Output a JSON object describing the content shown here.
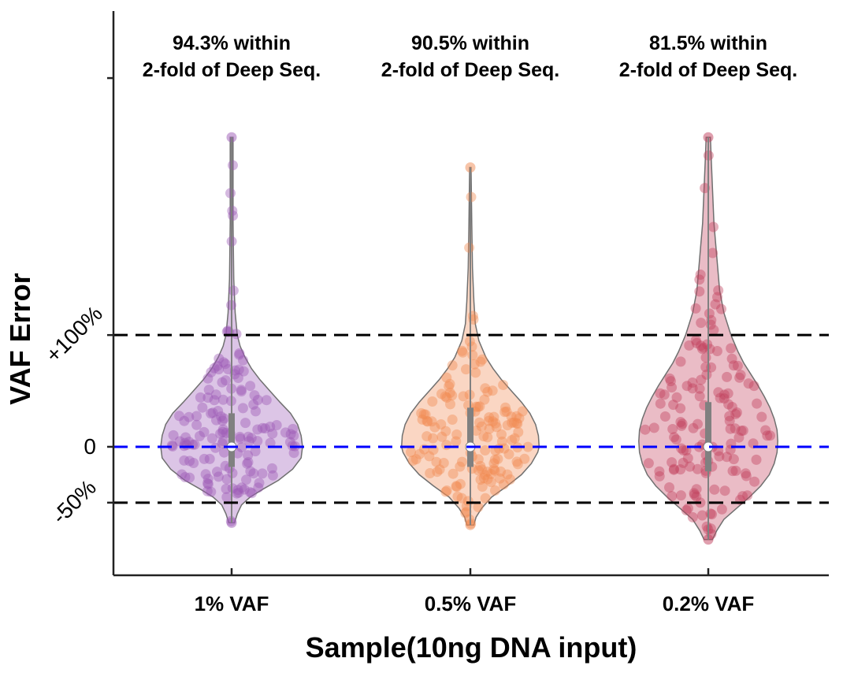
{
  "chart_data": {
    "type": "violin",
    "xlabel": "Sample(10ng DNA input)",
    "ylabel": "VAF Error",
    "categories": [
      "1% VAF",
      "0.5% VAF",
      "0.2% VAF"
    ],
    "y_ticks": [
      {
        "value": -50,
        "label": "-50%"
      },
      {
        "value": 0,
        "label": "0"
      },
      {
        "value": 100,
        "label": "+100%"
      },
      {
        "value": 330,
        "label": ""
      }
    ],
    "ylim": [
      -115,
      390
    ],
    "reference_lines": [
      {
        "value": 100,
        "color": "#000000",
        "style": "dashed"
      },
      {
        "value": 0,
        "color": "#0000ff",
        "style": "dashed"
      },
      {
        "value": -50,
        "color": "#000000",
        "style": "dashed"
      }
    ],
    "annotations": [
      {
        "line1": "94.3% within",
        "line2": "2-fold of Deep Seq."
      },
      {
        "line1": "90.5% within",
        "line2": "2-fold of Deep Seq."
      },
      {
        "line1": "81.5% within",
        "line2": "2-fold of Deep Seq."
      }
    ],
    "series": [
      {
        "category": "1% VAF",
        "color": "#9b59b6",
        "min": -68,
        "q1": -18,
        "median": 0,
        "q3": 30,
        "max": 277,
        "density": [
          [
            -68,
            0.04
          ],
          [
            -60,
            0.08
          ],
          [
            -52,
            0.14
          ],
          [
            -45,
            0.26
          ],
          [
            -38,
            0.44
          ],
          [
            -30,
            0.66
          ],
          [
            -20,
            0.86
          ],
          [
            -10,
            0.98
          ],
          [
            0,
            1.0
          ],
          [
            10,
            0.98
          ],
          [
            20,
            0.93
          ],
          [
            30,
            0.83
          ],
          [
            40,
            0.68
          ],
          [
            50,
            0.54
          ],
          [
            60,
            0.4
          ],
          [
            70,
            0.28
          ],
          [
            80,
            0.19
          ],
          [
            90,
            0.12
          ],
          [
            100,
            0.08
          ],
          [
            120,
            0.05
          ],
          [
            150,
            0.03
          ],
          [
            200,
            0.02
          ],
          [
            277,
            0.02
          ]
        ]
      },
      {
        "category": "0.5% VAF",
        "color": "#f08a52",
        "min": -70,
        "q1": -18,
        "median": 0,
        "q3": 35,
        "max": 250,
        "density": [
          [
            -70,
            0.05
          ],
          [
            -63,
            0.08
          ],
          [
            -55,
            0.16
          ],
          [
            -45,
            0.3
          ],
          [
            -35,
            0.52
          ],
          [
            -25,
            0.72
          ],
          [
            -15,
            0.86
          ],
          [
            -5,
            0.95
          ],
          [
            0,
            0.97
          ],
          [
            10,
            0.96
          ],
          [
            20,
            0.92
          ],
          [
            30,
            0.84
          ],
          [
            40,
            0.72
          ],
          [
            50,
            0.58
          ],
          [
            60,
            0.44
          ],
          [
            70,
            0.32
          ],
          [
            80,
            0.22
          ],
          [
            95,
            0.12
          ],
          [
            110,
            0.07
          ],
          [
            130,
            0.05
          ],
          [
            160,
            0.03
          ],
          [
            200,
            0.02
          ],
          [
            250,
            0.01
          ]
        ]
      },
      {
        "category": "0.2% VAF",
        "color": "#c2405d",
        "min": -83,
        "q1": -22,
        "median": 0,
        "q3": 40,
        "max": 277,
        "density": [
          [
            -83,
            0.06
          ],
          [
            -75,
            0.12
          ],
          [
            -65,
            0.22
          ],
          [
            -55,
            0.4
          ],
          [
            -45,
            0.58
          ],
          [
            -35,
            0.74
          ],
          [
            -25,
            0.86
          ],
          [
            -15,
            0.93
          ],
          [
            -5,
            0.97
          ],
          [
            5,
            0.98
          ],
          [
            15,
            0.97
          ],
          [
            25,
            0.93
          ],
          [
            35,
            0.87
          ],
          [
            45,
            0.79
          ],
          [
            55,
            0.7
          ],
          [
            65,
            0.6
          ],
          [
            75,
            0.5
          ],
          [
            85,
            0.42
          ],
          [
            100,
            0.32
          ],
          [
            120,
            0.22
          ],
          [
            140,
            0.16
          ],
          [
            170,
            0.12
          ],
          [
            200,
            0.08
          ],
          [
            230,
            0.06
          ],
          [
            260,
            0.04
          ],
          [
            277,
            0.03
          ]
        ]
      }
    ]
  }
}
